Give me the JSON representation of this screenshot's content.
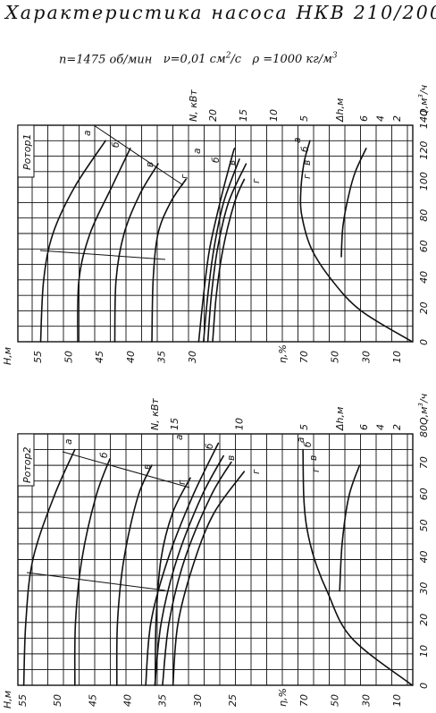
{
  "title": "Характеристика насоса НКВ 210/200",
  "params": {
    "n": "n=1475 об/мин",
    "nu_base": "ν=0,01 см",
    "nu_exp": "2",
    "nu_tail": "/с",
    "rho_base": "ρ =1000 кг/м",
    "rho_exp": "3"
  },
  "chart_data": [
    {
      "type": "line",
      "rotor_label": "Ротор1",
      "axis_labels": {
        "q_base": "Q,м",
        "q_exp": "3",
        "q_tail": "/ч",
        "dh": "Δh,м",
        "n": "N, кВт",
        "eta": "η,%",
        "h": "Н,м"
      },
      "ticks": {
        "q": [
          "0",
          "20",
          "40",
          "60",
          "80",
          "100",
          "120",
          "140"
        ],
        "dh": [
          "6",
          "4",
          "2"
        ],
        "n": [
          "20",
          "15",
          "10",
          "5"
        ],
        "eta": [
          "70",
          "50",
          "30",
          "10"
        ],
        "h": [
          "55",
          "50",
          "45",
          "40",
          "35",
          "30"
        ]
      },
      "curve_labels": [
        "а",
        "б",
        "в",
        "г"
      ],
      "series": [
        {
          "name": "H-а",
          "points": [
            [
              0,
              54.5
            ],
            [
              40,
              54.0
            ],
            [
              70,
              52.5
            ],
            [
              100,
              49.0
            ],
            [
              130,
              44.0
            ]
          ]
        },
        {
          "name": "H-б",
          "points": [
            [
              0,
              48.5
            ],
            [
              40,
              48.3
            ],
            [
              70,
              46.5
            ],
            [
              100,
              43.0
            ],
            [
              125,
              40.0
            ]
          ]
        },
        {
          "name": "H-в",
          "points": [
            [
              0,
              42.5
            ],
            [
              40,
              42.3
            ],
            [
              70,
              41.0
            ],
            [
              95,
              38.5
            ],
            [
              115,
              35.5
            ]
          ]
        },
        {
          "name": "H-г",
          "points": [
            [
              0,
              36.5
            ],
            [
              40,
              36.3
            ],
            [
              70,
              35.5
            ],
            [
              90,
              33.5
            ],
            [
              105,
              31.0
            ]
          ]
        },
        {
          "name": "N-а",
          "points": [
            [
              0,
              22.3
            ],
            [
              30,
              21.5
            ],
            [
              60,
              20.5
            ],
            [
              90,
              18.8
            ],
            [
              120,
              16.8
            ],
            [
              125,
              16.4
            ]
          ]
        },
        {
          "name": "N-б",
          "points": [
            [
              0,
              21.5
            ],
            [
              30,
              20.8
            ],
            [
              60,
              19.8
            ],
            [
              90,
              18.2
            ],
            [
              118,
              15.6
            ]
          ]
        },
        {
          "name": "N-в",
          "points": [
            [
              0,
              20.8
            ],
            [
              30,
              20.2
            ],
            [
              60,
              19.2
            ],
            [
              90,
              17.4
            ],
            [
              115,
              14.5
            ]
          ]
        },
        {
          "name": "N-г",
          "points": [
            [
              0,
              20.0
            ],
            [
              30,
              19.4
            ],
            [
              60,
              18.3
            ],
            [
              90,
              16.4
            ],
            [
              105,
              14.8
            ]
          ]
        },
        {
          "name": "η",
          "points": [
            [
              0,
              0
            ],
            [
              20,
              33
            ],
            [
              40,
              52
            ],
            [
              60,
              65
            ],
            [
              80,
              71
            ],
            [
              95,
              72
            ],
            [
              115,
              70
            ],
            [
              130,
              66
            ]
          ]
        },
        {
          "name": "Δh",
          "points": [
            [
              55,
              8.7
            ],
            [
              75,
              8.5
            ],
            [
              95,
              7.8
            ],
            [
              110,
              7.0
            ],
            [
              125,
              5.7
            ]
          ]
        }
      ]
    },
    {
      "type": "line",
      "rotor_label": "Ротор2",
      "axis_labels": {
        "q_base": "Q,м",
        "q_exp": "3",
        "q_tail": "/ч",
        "dh": "Δh,м",
        "n": "N, кВт",
        "eta": "η,%",
        "h": "Н,м"
      },
      "ticks": {
        "q": [
          "0",
          "10",
          "20",
          "30",
          "40",
          "50",
          "60",
          "70",
          "80"
        ],
        "dh": [
          "6",
          "4",
          "2"
        ],
        "n": [
          "15",
          "10",
          "5"
        ],
        "eta": [
          "70",
          "50",
          "30",
          "10"
        ],
        "h": [
          "55",
          "50",
          "45",
          "40",
          "35",
          "30",
          "25"
        ]
      },
      "curve_labels": [
        "а",
        "б",
        "в",
        "г"
      ],
      "series": [
        {
          "name": "H-а",
          "points": [
            [
              0,
              54.8
            ],
            [
              20,
              54.5
            ],
            [
              40,
              53.5
            ],
            [
              60,
              50.5
            ],
            [
              75,
              47.5
            ]
          ]
        },
        {
          "name": "H-б",
          "points": [
            [
              0,
              47.5
            ],
            [
              20,
              47.4
            ],
            [
              40,
              46.5
            ],
            [
              60,
              44.5
            ],
            [
              72,
              42.5
            ]
          ]
        },
        {
          "name": "H-в",
          "points": [
            [
              0,
              41.5
            ],
            [
              20,
              41.4
            ],
            [
              40,
              40.5
            ],
            [
              60,
              38.5
            ],
            [
              70,
              36.5
            ]
          ]
        },
        {
          "name": "H-г",
          "points": [
            [
              0,
              36.0
            ],
            [
              20,
              35.9
            ],
            [
              40,
              35.2
            ],
            [
              55,
              33.5
            ],
            [
              66,
              31.0
            ]
          ]
        },
        {
          "name": "N-а",
          "points": [
            [
              0,
              17.2
            ],
            [
              20,
              16.8
            ],
            [
              40,
              15.5
            ],
            [
              60,
              13.6
            ],
            [
              77,
              11.6
            ]
          ]
        },
        {
          "name": "N-б",
          "points": [
            [
              0,
              16.5
            ],
            [
              20,
              16.0
            ],
            [
              40,
              14.8
            ],
            [
              60,
              12.9
            ],
            [
              73,
              11.2
            ]
          ]
        },
        {
          "name": "N-в",
          "points": [
            [
              0,
              15.9
            ],
            [
              20,
              15.4
            ],
            [
              40,
              14.2
            ],
            [
              60,
              12.2
            ],
            [
              71,
              10.6
            ]
          ]
        },
        {
          "name": "N-г",
          "points": [
            [
              0,
              15.1
            ],
            [
              20,
              14.7
            ],
            [
              40,
              13.4
            ],
            [
              55,
              11.9
            ],
            [
              68,
              9.6
            ]
          ]
        },
        {
          "name": "η",
          "points": [
            [
              0,
              0
            ],
            [
              15,
              39
            ],
            [
              30,
              55
            ],
            [
              40,
              63
            ],
            [
              50,
              68
            ],
            [
              60,
              70
            ],
            [
              75,
              70.5
            ]
          ]
        },
        {
          "name": "Δh",
          "points": [
            [
              30,
              8.9
            ],
            [
              45,
              8.6
            ],
            [
              60,
              7.8
            ],
            [
              70,
              6.5
            ]
          ]
        }
      ]
    }
  ]
}
